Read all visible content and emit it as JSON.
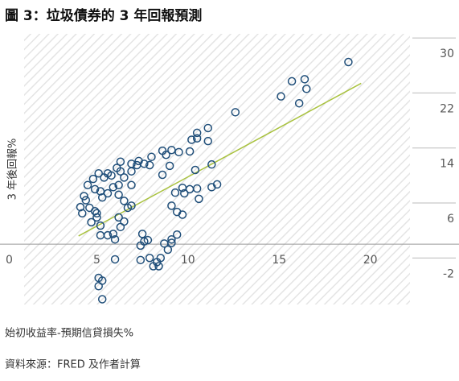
{
  "chart_data": {
    "type": "scatter",
    "title": "圖 3：垃圾債券的 3 年回報預測",
    "y_label": "3 年後回報%",
    "x_label": "始初收益率-預期信貸損失%",
    "source": "資料來源：FRED 及作者計算",
    "color": "#1f4e79",
    "trendline": {
      "color": "#a9c23f",
      "x": [
        4.0,
        19.5
      ],
      "y": [
        1.2,
        23.4
      ]
    },
    "xlim": [
      0,
      22
    ],
    "ylim": [
      -9,
      31
    ],
    "xticks": [
      0,
      5,
      10,
      15,
      20
    ],
    "yticks": [
      30,
      22,
      14,
      6,
      -2
    ],
    "x": [
      18.8,
      15.7,
      16.4,
      16.5,
      15.1,
      16.1,
      12.6,
      11.1,
      10.5,
      10.2,
      10.5,
      11.1,
      10.1,
      8.6,
      8.8,
      9.1,
      9.5,
      8.0,
      7.9,
      11.3,
      9.0,
      10.4,
      8.6,
      11.6,
      11.3,
      9.7,
      10.1,
      10.5,
      9.8,
      10.6,
      9.3,
      9.1,
      9.4,
      9.7,
      9.4,
      9.1,
      8.7,
      8.9,
      8.5,
      8.3,
      8.1,
      8.4,
      7.9,
      7.4,
      7.8,
      7.5,
      7.6,
      6.0,
      6.0,
      5.9,
      5.6,
      5.2,
      6.2,
      6.5,
      6.3,
      6.7,
      6.9,
      6.5,
      6.9,
      6.2,
      5.9,
      5.4,
      5.8,
      6.3,
      6.1,
      6.3,
      6.9,
      7.2,
      7.3,
      7.6,
      6.9,
      6.5,
      5.1,
      5.6,
      4.8,
      4.5,
      4.9,
      4.3,
      4.4,
      4.1,
      4.2,
      4.6,
      4.9,
      5.0,
      4.7,
      5.2,
      5.0,
      5.3,
      5.2,
      5.6,
      6.2,
      5.1,
      5.3,
      5.1,
      5.3,
      7.4,
      9.1
    ],
    "y": [
      26.5,
      23.7,
      24.0,
      22.6,
      21.5,
      20.5,
      19.2,
      16.9,
      16.2,
      15.2,
      15.4,
      15.0,
      13.5,
      13.6,
      13.0,
      13.7,
      13.4,
      12.7,
      11.5,
      11.6,
      11.4,
      10.8,
      10.1,
      8.7,
      8.3,
      8.2,
      8.0,
      8.1,
      7.4,
      6.6,
      7.5,
      5.6,
      4.7,
      4.3,
      1.4,
      0.7,
      0.1,
      -0.8,
      -2.0,
      -2.6,
      -3.2,
      -3.2,
      -2.0,
      -2.3,
      0.6,
      1.5,
      0.4,
      -2.2,
      0.7,
      1.5,
      1.3,
      1.3,
      3.9,
      3.3,
      2.5,
      5.3,
      5.6,
      6.3,
      8.6,
      8.6,
      8.3,
      9.7,
      10.0,
      10.6,
      11.1,
      12.0,
      11.7,
      11.5,
      12.1,
      11.7,
      10.6,
      9.7,
      10.3,
      10.3,
      9.5,
      8.6,
      8.0,
      7.0,
      6.4,
      5.4,
      4.5,
      5.3,
      4.8,
      3.9,
      3.2,
      2.7,
      4.5,
      6.8,
      7.7,
      7.4,
      7.2,
      -4.9,
      -5.3,
      -6.1,
      -8.0,
      -0.2,
      0.2
    ]
  }
}
